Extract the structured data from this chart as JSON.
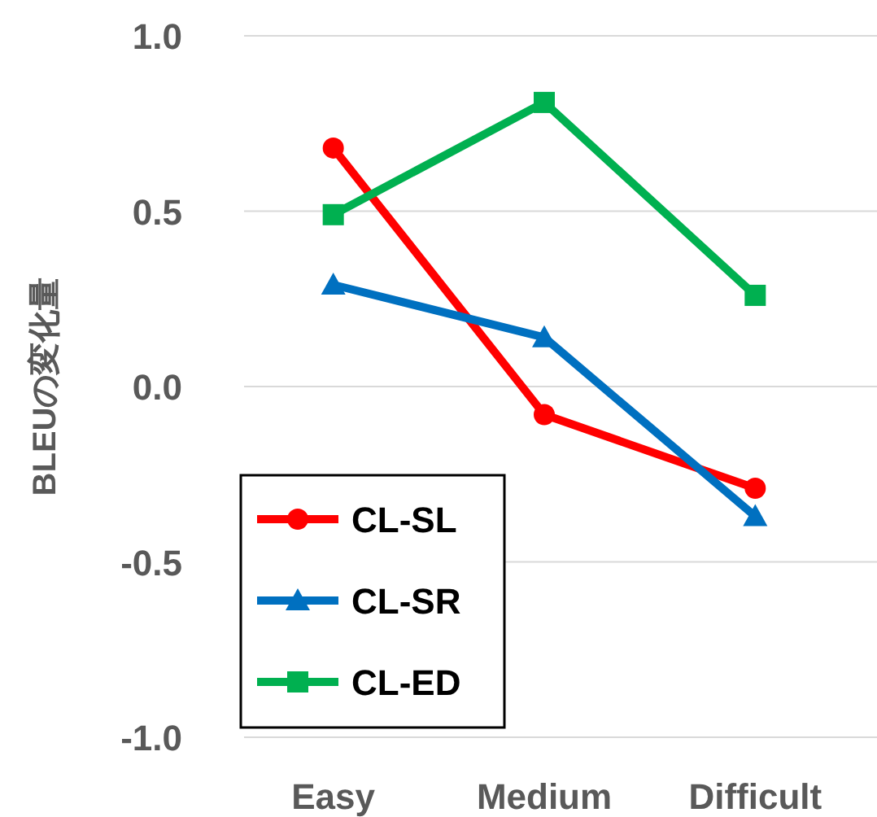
{
  "chart_data": {
    "type": "line",
    "ylabel": "BLEUの変化量",
    "categories": [
      "Easy",
      "Medium",
      "Difficult"
    ],
    "series": [
      {
        "name": "CL-SL",
        "color": "#ff0000",
        "marker": "circle",
        "values": [
          0.68,
          -0.08,
          -0.29
        ]
      },
      {
        "name": "CL-SR",
        "color": "#0070c0",
        "marker": "triangle",
        "values": [
          0.29,
          0.14,
          -0.37
        ]
      },
      {
        "name": "CL-ED",
        "color": "#00b050",
        "marker": "square",
        "values": [
          0.49,
          0.81,
          0.26
        ]
      }
    ],
    "ylim": [
      -1.0,
      1.0
    ],
    "yticks": [
      {
        "value": -1.0,
        "label": "-1.0"
      },
      {
        "value": -0.5,
        "label": "-0.5"
      },
      {
        "value": 0.0,
        "label": "0.0"
      },
      {
        "value": 0.5,
        "label": "0.5"
      },
      {
        "value": 1.0,
        "label": "1.0"
      }
    ],
    "grid": "y",
    "legend": "bottom left",
    "line_style": "solid"
  }
}
